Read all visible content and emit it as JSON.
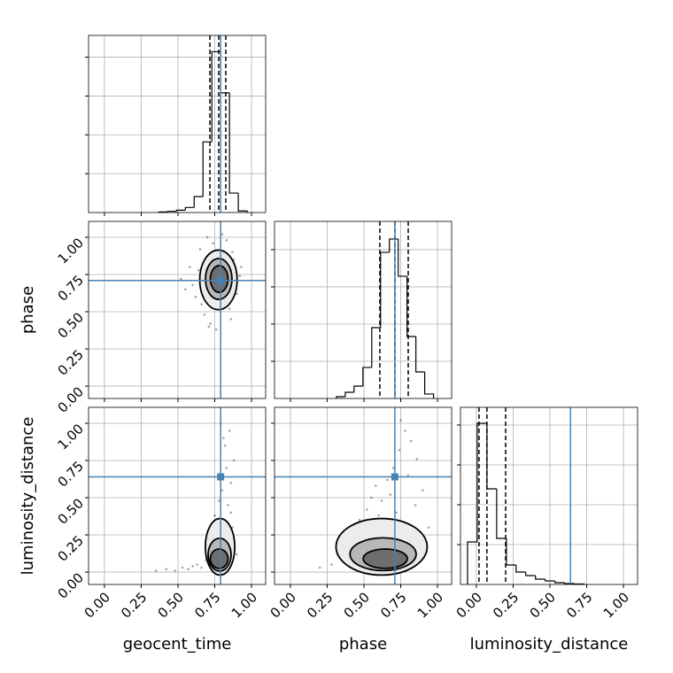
{
  "chart_data": [
    {
      "type": "histogram",
      "xlim": [
        -0.108,
        1.096
      ],
      "ylim": [
        0,
        2280
      ],
      "xticks": [
        0,
        0.25,
        0.5,
        0.75,
        1
      ],
      "yticks": [
        500,
        1000,
        1500,
        2000
      ],
      "grid": true,
      "bins": [
        0.37,
        0.43,
        0.49,
        0.55,
        0.61,
        0.67,
        0.73,
        0.79,
        0.85,
        0.91,
        0.97
      ],
      "counts": [
        8,
        15,
        30,
        65,
        205,
        910,
        2070,
        1540,
        250,
        20
      ],
      "color": "#000000",
      "quantiles": [
        0.717,
        0.777,
        0.825
      ],
      "truth": 0.79,
      "truth_color": "#4682b4"
    },
    {
      "type": "scatter",
      "ylabel": "phase",
      "xlim": [
        -0.108,
        1.096
      ],
      "ylim": [
        -0.083,
        1.107
      ],
      "xticks": [
        0,
        0.25,
        0.5,
        0.75,
        1
      ],
      "yticks": [
        {
          "value": 0,
          "label": "0.00"
        },
        {
          "value": 0.25,
          "label": "0.25"
        },
        {
          "value": 0.5,
          "label": "0.50"
        },
        {
          "value": 0.75,
          "label": "0.75"
        },
        {
          "value": 1,
          "label": "1.00"
        }
      ],
      "grid": true,
      "color": "#000000",
      "points": {
        "x": [
          0.52,
          0.58,
          0.62,
          0.65,
          0.68,
          0.7,
          0.72,
          0.74,
          0.83,
          0.86,
          0.88,
          0.9,
          0.92,
          0.6,
          0.66,
          0.69,
          0.85,
          0.87,
          0.64,
          0.71,
          0.8,
          0.76,
          0.55,
          0.89,
          0.93
        ],
        "y": [
          0.72,
          0.8,
          0.6,
          0.92,
          0.48,
          1.0,
          0.42,
          0.96,
          0.98,
          0.45,
          0.85,
          0.62,
          0.74,
          0.68,
          0.55,
          0.86,
          0.52,
          0.9,
          0.78,
          0.4,
          1.02,
          0.38,
          0.65,
          0.7,
          0.8
        ]
      },
      "contours": [
        {
          "cx": 0.775,
          "cy": 0.714,
          "rx": 0.127,
          "ry": 0.2,
          "fill": "#ececec"
        },
        {
          "cx": 0.777,
          "cy": 0.72,
          "rx": 0.09,
          "ry": 0.137,
          "fill": "#b8b8b8"
        },
        {
          "cx": 0.78,
          "cy": 0.72,
          "rx": 0.06,
          "ry": 0.09,
          "fill": "#6e6e6e"
        }
      ],
      "truth": {
        "x": 0.79,
        "y": 0.71
      },
      "truth_color": "#4682b4"
    },
    {
      "type": "histogram",
      "xlim": [
        -0.108,
        1.096
      ],
      "ylim": [
        0,
        2380
      ],
      "xticks": [
        0,
        0.25,
        0.5,
        0.75,
        1
      ],
      "yticks": [
        500,
        1000,
        1500,
        2000
      ],
      "grid": true,
      "bins": [
        0.313,
        0.373,
        0.433,
        0.493,
        0.553,
        0.613,
        0.673,
        0.733,
        0.793,
        0.853,
        0.913,
        0.973
      ],
      "counts": [
        24,
        83,
        167,
        417,
        952,
        1964,
        2143,
        1643,
        833,
        357,
        60
      ],
      "color": "#000000",
      "quantiles": [
        0.608,
        0.711,
        0.801
      ],
      "truth": 0.71,
      "truth_color": "#4682b4"
    },
    {
      "type": "scatter",
      "ylabel": "luminosity_distance",
      "xlabel": "geocent_time",
      "xlim": [
        -0.108,
        1.096
      ],
      "ylim": [
        -0.083,
        1.107
      ],
      "xticks": [
        {
          "value": 0,
          "label": "0.00"
        },
        {
          "value": 0.25,
          "label": "0.25"
        },
        {
          "value": 0.5,
          "label": "0.50"
        },
        {
          "value": 0.75,
          "label": "0.75"
        },
        {
          "value": 1,
          "label": "1.00"
        }
      ],
      "yticks": [
        {
          "value": 0,
          "label": "0.00"
        },
        {
          "value": 0.25,
          "label": "0.25"
        },
        {
          "value": 0.5,
          "label": "0.50"
        },
        {
          "value": 0.75,
          "label": "0.75"
        },
        {
          "value": 1,
          "label": "1.00"
        }
      ],
      "grid": true,
      "color": "#000000",
      "points": {
        "x": [
          0.35,
          0.42,
          0.48,
          0.53,
          0.57,
          0.6,
          0.63,
          0.66,
          0.69,
          0.72,
          0.84,
          0.86,
          0.88,
          0.82,
          0.85,
          0.87,
          0.8,
          0.78,
          0.83,
          0.86,
          0.75,
          0.81,
          0.79,
          0.84,
          0.9
        ],
        "y": [
          0.01,
          0.02,
          0.01,
          0.03,
          0.02,
          0.04,
          0.05,
          0.03,
          0.08,
          0.15,
          0.45,
          0.6,
          0.75,
          0.85,
          0.95,
          0.3,
          0.55,
          0.48,
          0.7,
          0.4,
          0.38,
          0.9,
          1.0,
          0.22,
          0.12
        ]
      },
      "contours": [
        {
          "cx": 0.786,
          "cy": 0.17,
          "rx": 0.1,
          "ry": 0.19,
          "fill": "#ececec"
        },
        {
          "cx": 0.783,
          "cy": 0.117,
          "rx": 0.078,
          "ry": 0.11,
          "fill": "#b8b8b8"
        },
        {
          "cx": 0.78,
          "cy": 0.09,
          "rx": 0.06,
          "ry": 0.065,
          "fill": "#6e6e6e"
        }
      ],
      "truth": {
        "x": 0.79,
        "y": 0.64
      },
      "truth_color": "#4682b4"
    },
    {
      "type": "scatter",
      "xlabel": "phase",
      "xlim": [
        -0.108,
        1.096
      ],
      "ylim": [
        -0.083,
        1.107
      ],
      "xticks": [
        {
          "value": 0,
          "label": "0.00"
        },
        {
          "value": 0.25,
          "label": "0.25"
        },
        {
          "value": 0.5,
          "label": "0.50"
        },
        {
          "value": 0.75,
          "label": "0.75"
        },
        {
          "value": 1,
          "label": "1.00"
        }
      ],
      "yticks": [
        0,
        0.25,
        0.5,
        0.75,
        1
      ],
      "grid": true,
      "color": "#000000",
      "points": {
        "x": [
          0.2,
          0.28,
          0.32,
          0.38,
          0.42,
          0.47,
          0.52,
          0.55,
          0.58,
          0.62,
          0.66,
          0.7,
          0.74,
          0.78,
          0.82,
          0.86,
          0.9,
          0.94,
          0.75,
          0.8,
          0.68,
          0.85,
          0.6,
          0.72,
          0.88
        ],
        "y": [
          0.03,
          0.05,
          0.12,
          0.2,
          0.28,
          0.35,
          0.42,
          0.5,
          0.58,
          0.48,
          0.62,
          0.7,
          0.82,
          0.95,
          0.88,
          0.76,
          0.55,
          0.3,
          1.02,
          0.65,
          0.52,
          0.45,
          0.38,
          0.4,
          0.2
        ]
      },
      "contours": [
        {
          "cx": 0.62,
          "cy": 0.17,
          "rx": 0.31,
          "ry": 0.19,
          "fill": "#ececec"
        },
        {
          "cx": 0.63,
          "cy": 0.12,
          "rx": 0.225,
          "ry": 0.11,
          "fill": "#b8b8b8"
        },
        {
          "cx": 0.645,
          "cy": 0.09,
          "rx": 0.15,
          "ry": 0.065,
          "fill": "#6e6e6e"
        }
      ],
      "truth": {
        "x": 0.71,
        "y": 0.64
      },
      "truth_color": "#4682b4"
    },
    {
      "type": "histogram",
      "xlabel": "luminosity_distance",
      "xlim": [
        -0.108,
        1.096
      ],
      "ylim": [
        0,
        4444
      ],
      "xticks": [
        {
          "value": 0,
          "label": "0.00"
        },
        {
          "value": 0.25,
          "label": "0.25"
        },
        {
          "value": 0.5,
          "label": "0.50"
        },
        {
          "value": 0.75,
          "label": "0.75"
        },
        {
          "value": 1,
          "label": "1.00"
        }
      ],
      "yticks": [
        1000,
        2000,
        3000,
        4000
      ],
      "grid": true,
      "bins": [
        -0.06,
        0.006,
        0.072,
        0.138,
        0.204,
        0.27,
        0.336,
        0.402,
        0.468,
        0.534,
        0.6,
        0.666,
        0.732
      ],
      "counts": [
        1067,
        4044,
        2400,
        1156,
        489,
        311,
        222,
        133,
        89,
        44,
        22,
        11
      ],
      "color": "#000000",
      "quantiles": [
        0.018,
        0.072,
        0.199
      ],
      "truth": 0.64,
      "truth_color": "#4682b4"
    }
  ]
}
